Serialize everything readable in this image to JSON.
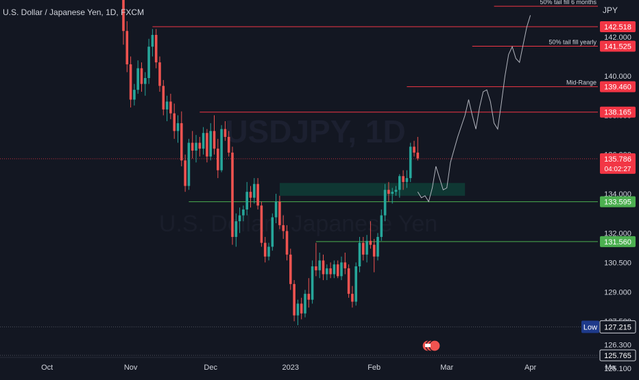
{
  "symbol_title": "U.S. Dollar / Japanese Yen, 1D, FXCM",
  "watermark": {
    "line1": "USDJPY, 1D",
    "line2": "U.S. Dollar / Japanese Yen"
  },
  "currency_label": "JPY",
  "colors": {
    "up": "#26a69a",
    "down": "#ef5350",
    "bg": "#131722",
    "axis_text": "#d1d4dc",
    "grid_dim": "#2a2e39",
    "support": "#4caf50",
    "resistance": "#f23645",
    "low_badge": "#1e3a8a",
    "zone": "#0f3d36"
  },
  "chart_data": {
    "type": "candlestick",
    "y_axis": {
      "min": 125.1,
      "max": 143.6,
      "ticks": [
        142.0,
        140.0,
        138.0,
        136.0,
        134.0,
        132.0,
        130.5,
        129.0,
        127.5,
        126.3,
        125.1
      ],
      "tick_labels": [
        "142.000",
        "140.000",
        "138.000",
        "136.000",
        "134.000",
        "132.000",
        "130.500",
        "129.000",
        "127.500",
        "126.300",
        "125.100"
      ]
    },
    "x_axis": {
      "labels": [
        {
          "label": "Oct",
          "index": -21
        },
        {
          "label": "Nov",
          "index": 2
        },
        {
          "label": "Dec",
          "index": 24
        },
        {
          "label": "2023",
          "index": 46
        },
        {
          "label": "Feb",
          "index": 69
        },
        {
          "label": "Mar",
          "index": 89
        },
        {
          "label": "Apr",
          "index": 112
        },
        {
          "label": "Ma",
          "index": 134
        }
      ]
    },
    "candles": [
      {
        "o": 144.5,
        "h": 145.0,
        "l": 141.6,
        "c": 142.3
      },
      {
        "o": 142.3,
        "h": 142.8,
        "l": 140.2,
        "c": 140.6
      },
      {
        "o": 140.6,
        "h": 141.0,
        "l": 138.4,
        "c": 138.8
      },
      {
        "o": 138.8,
        "h": 139.6,
        "l": 138.5,
        "c": 139.3
      },
      {
        "o": 139.3,
        "h": 140.8,
        "l": 139.1,
        "c": 140.4
      },
      {
        "o": 140.4,
        "h": 140.7,
        "l": 139.2,
        "c": 139.6
      },
      {
        "o": 139.6,
        "h": 140.2,
        "l": 139.0,
        "c": 139.9
      },
      {
        "o": 139.9,
        "h": 141.9,
        "l": 139.6,
        "c": 141.5
      },
      {
        "o": 141.5,
        "h": 142.4,
        "l": 141.0,
        "c": 142.1
      },
      {
        "o": 142.1,
        "h": 142.4,
        "l": 140.4,
        "c": 140.7
      },
      {
        "o": 140.7,
        "h": 141.0,
        "l": 139.2,
        "c": 139.5
      },
      {
        "o": 139.5,
        "h": 139.8,
        "l": 138.0,
        "c": 138.3
      },
      {
        "o": 138.3,
        "h": 139.0,
        "l": 137.7,
        "c": 138.7
      },
      {
        "o": 138.7,
        "h": 139.1,
        "l": 137.8,
        "c": 138.1
      },
      {
        "o": 138.1,
        "h": 138.6,
        "l": 136.8,
        "c": 137.2
      },
      {
        "o": 137.2,
        "h": 138.0,
        "l": 136.6,
        "c": 137.6
      },
      {
        "o": 137.6,
        "h": 138.2,
        "l": 135.4,
        "c": 135.7
      },
      {
        "o": 135.7,
        "h": 136.0,
        "l": 134.1,
        "c": 134.4
      },
      {
        "o": 134.4,
        "h": 136.8,
        "l": 134.2,
        "c": 136.6
      },
      {
        "o": 136.6,
        "h": 137.2,
        "l": 135.8,
        "c": 136.2
      },
      {
        "o": 136.2,
        "h": 137.0,
        "l": 135.6,
        "c": 136.6
      },
      {
        "o": 136.6,
        "h": 136.9,
        "l": 135.9,
        "c": 136.3
      },
      {
        "o": 136.3,
        "h": 137.4,
        "l": 136.0,
        "c": 137.1
      },
      {
        "o": 137.1,
        "h": 137.3,
        "l": 135.6,
        "c": 135.9
      },
      {
        "o": 135.9,
        "h": 137.6,
        "l": 135.7,
        "c": 137.2
      },
      {
        "o": 137.2,
        "h": 138.0,
        "l": 136.0,
        "c": 136.3
      },
      {
        "o": 136.3,
        "h": 136.8,
        "l": 134.8,
        "c": 135.2
      },
      {
        "o": 135.2,
        "h": 137.5,
        "l": 135.1,
        "c": 137.3
      },
      {
        "o": 137.3,
        "h": 137.7,
        "l": 136.7,
        "c": 136.9
      },
      {
        "o": 136.9,
        "h": 137.2,
        "l": 135.9,
        "c": 136.1
      },
      {
        "o": 136.1,
        "h": 136.4,
        "l": 131.4,
        "c": 131.8
      },
      {
        "o": 131.8,
        "h": 133.0,
        "l": 131.3,
        "c": 132.6
      },
      {
        "o": 132.6,
        "h": 133.3,
        "l": 132.0,
        "c": 132.9
      },
      {
        "o": 132.9,
        "h": 133.4,
        "l": 132.6,
        "c": 133.2
      },
      {
        "o": 133.2,
        "h": 134.6,
        "l": 132.9,
        "c": 134.1
      },
      {
        "o": 134.1,
        "h": 134.4,
        "l": 133.3,
        "c": 133.8
      },
      {
        "o": 133.8,
        "h": 134.8,
        "l": 133.5,
        "c": 134.5
      },
      {
        "o": 134.5,
        "h": 134.8,
        "l": 133.2,
        "c": 133.4
      },
      {
        "o": 133.4,
        "h": 133.6,
        "l": 131.3,
        "c": 131.5
      },
      {
        "o": 131.5,
        "h": 131.8,
        "l": 130.5,
        "c": 130.8
      },
      {
        "o": 130.8,
        "h": 131.5,
        "l": 130.6,
        "c": 131.3
      },
      {
        "o": 131.3,
        "h": 133.0,
        "l": 131.1,
        "c": 132.8
      },
      {
        "o": 132.8,
        "h": 134.0,
        "l": 132.5,
        "c": 133.6
      },
      {
        "o": 133.6,
        "h": 133.9,
        "l": 132.2,
        "c": 132.4
      },
      {
        "o": 132.4,
        "h": 132.9,
        "l": 131.7,
        "c": 132.1
      },
      {
        "o": 132.1,
        "h": 132.4,
        "l": 130.6,
        "c": 130.9
      },
      {
        "o": 130.9,
        "h": 131.2,
        "l": 129.1,
        "c": 129.4
      },
      {
        "o": 129.4,
        "h": 129.6,
        "l": 127.5,
        "c": 127.8
      },
      {
        "o": 127.8,
        "h": 128.6,
        "l": 127.3,
        "c": 128.4
      },
      {
        "o": 128.4,
        "h": 128.7,
        "l": 127.6,
        "c": 127.9
      },
      {
        "o": 127.9,
        "h": 129.1,
        "l": 127.7,
        "c": 128.9
      },
      {
        "o": 128.9,
        "h": 129.7,
        "l": 128.2,
        "c": 128.6
      },
      {
        "o": 128.6,
        "h": 130.6,
        "l": 128.4,
        "c": 130.3
      },
      {
        "o": 130.3,
        "h": 131.5,
        "l": 129.8,
        "c": 130.1
      },
      {
        "o": 130.1,
        "h": 131.0,
        "l": 129.7,
        "c": 130.6
      },
      {
        "o": 130.6,
        "h": 130.9,
        "l": 129.6,
        "c": 129.9
      },
      {
        "o": 129.9,
        "h": 130.4,
        "l": 129.6,
        "c": 130.2
      },
      {
        "o": 130.2,
        "h": 130.5,
        "l": 129.7,
        "c": 129.9
      },
      {
        "o": 129.9,
        "h": 130.6,
        "l": 129.7,
        "c": 130.4
      },
      {
        "o": 130.4,
        "h": 130.6,
        "l": 129.7,
        "c": 129.8
      },
      {
        "o": 129.8,
        "h": 130.8,
        "l": 129.6,
        "c": 130.5
      },
      {
        "o": 130.5,
        "h": 131.0,
        "l": 129.9,
        "c": 130.2
      },
      {
        "o": 130.2,
        "h": 130.4,
        "l": 128.7,
        "c": 128.9
      },
      {
        "o": 128.9,
        "h": 129.3,
        "l": 128.2,
        "c": 128.5
      },
      {
        "o": 128.5,
        "h": 130.5,
        "l": 128.3,
        "c": 130.3
      },
      {
        "o": 130.3,
        "h": 131.8,
        "l": 130.0,
        "c": 131.5
      },
      {
        "o": 131.5,
        "h": 131.8,
        "l": 130.6,
        "c": 130.9
      },
      {
        "o": 130.9,
        "h": 131.9,
        "l": 130.5,
        "c": 131.6
      },
      {
        "o": 131.6,
        "h": 132.6,
        "l": 131.2,
        "c": 131.4
      },
      {
        "o": 131.4,
        "h": 131.7,
        "l": 130.0,
        "c": 130.8
      },
      {
        "o": 130.8,
        "h": 132.0,
        "l": 130.6,
        "c": 131.8
      },
      {
        "o": 131.8,
        "h": 133.2,
        "l": 131.6,
        "c": 132.9
      },
      {
        "o": 132.9,
        "h": 134.5,
        "l": 132.6,
        "c": 134.2
      },
      {
        "o": 134.2,
        "h": 134.6,
        "l": 133.6,
        "c": 134.0
      },
      {
        "o": 134.0,
        "h": 134.3,
        "l": 133.5,
        "c": 134.1
      },
      {
        "o": 134.1,
        "h": 134.4,
        "l": 133.9,
        "c": 134.2
      },
      {
        "o": 134.2,
        "h": 135.0,
        "l": 133.8,
        "c": 134.9
      },
      {
        "o": 134.9,
        "h": 135.2,
        "l": 134.2,
        "c": 134.6
      },
      {
        "o": 134.6,
        "h": 135.2,
        "l": 134.3,
        "c": 134.8
      },
      {
        "o": 134.8,
        "h": 136.6,
        "l": 134.6,
        "c": 136.4
      },
      {
        "o": 136.4,
        "h": 136.7,
        "l": 135.9,
        "c": 136.1
      },
      {
        "o": 136.1,
        "h": 136.9,
        "l": 135.7,
        "c": 135.8
      }
    ],
    "projection": [
      {
        "i": 81,
        "y": 134.1
      },
      {
        "i": 82,
        "y": 133.8
      },
      {
        "i": 83,
        "y": 133.9
      },
      {
        "i": 84,
        "y": 133.6
      },
      {
        "i": 85,
        "y": 134.3
      },
      {
        "i": 86,
        "y": 135.4
      },
      {
        "i": 87,
        "y": 134.8
      },
      {
        "i": 88,
        "y": 134.2
      },
      {
        "i": 89,
        "y": 134.3
      },
      {
        "i": 90,
        "y": 135.6
      },
      {
        "i": 92,
        "y": 136.9
      },
      {
        "i": 94,
        "y": 138.0
      },
      {
        "i": 95,
        "y": 138.8
      },
      {
        "i": 96,
        "y": 138.0
      },
      {
        "i": 97,
        "y": 137.3
      },
      {
        "i": 98,
        "y": 138.4
      },
      {
        "i": 99,
        "y": 139.2
      },
      {
        "i": 100,
        "y": 139.3
      },
      {
        "i": 101,
        "y": 138.7
      },
      {
        "i": 102,
        "y": 137.6
      },
      {
        "i": 103,
        "y": 137.3
      },
      {
        "i": 104,
        "y": 138.6
      },
      {
        "i": 105,
        "y": 140.0
      },
      {
        "i": 106,
        "y": 141.1
      },
      {
        "i": 107,
        "y": 141.5
      },
      {
        "i": 108,
        "y": 140.9
      },
      {
        "i": 109,
        "y": 140.7
      },
      {
        "i": 110,
        "y": 141.6
      },
      {
        "i": 111,
        "y": 142.5
      },
      {
        "i": 112,
        "y": 143.1
      }
    ],
    "levels": [
      {
        "label": "50% tail fill 6 months",
        "value": 143.56,
        "color": "#f23645",
        "badge": "",
        "from_index": 102
      },
      {
        "label": "",
        "value": 142.518,
        "color": "#f23645",
        "badge": "142.518",
        "from_index": 8
      },
      {
        "label": "50% tail fill yearly",
        "value": 141.525,
        "color": "#f23645",
        "badge": "141.525",
        "from_index": 96
      },
      {
        "label": "Mid-Range",
        "value": 139.46,
        "color": "#f23645",
        "badge": "139.460",
        "from_index": 78
      },
      {
        "label": "",
        "value": 138.165,
        "color": "#f23645",
        "badge": "138.165",
        "from_index": 21
      },
      {
        "label": "",
        "value": 133.595,
        "color": "#4caf50",
        "badge": "133.595",
        "from_index": 18
      },
      {
        "label": "",
        "value": 131.56,
        "color": "#4caf50",
        "badge": "131.560",
        "from_index": 53
      }
    ],
    "current_price": {
      "value": 135.786,
      "label": "135.786",
      "countdown": "04:02:27"
    },
    "low": {
      "tag": "Low",
      "value": 127.215,
      "label": "127.215"
    },
    "extra_price": {
      "value": 125.765,
      "label": "125.765"
    },
    "zone": {
      "from_index": 43,
      "to_index": 94,
      "low": 133.9,
      "high": 134.55
    }
  }
}
